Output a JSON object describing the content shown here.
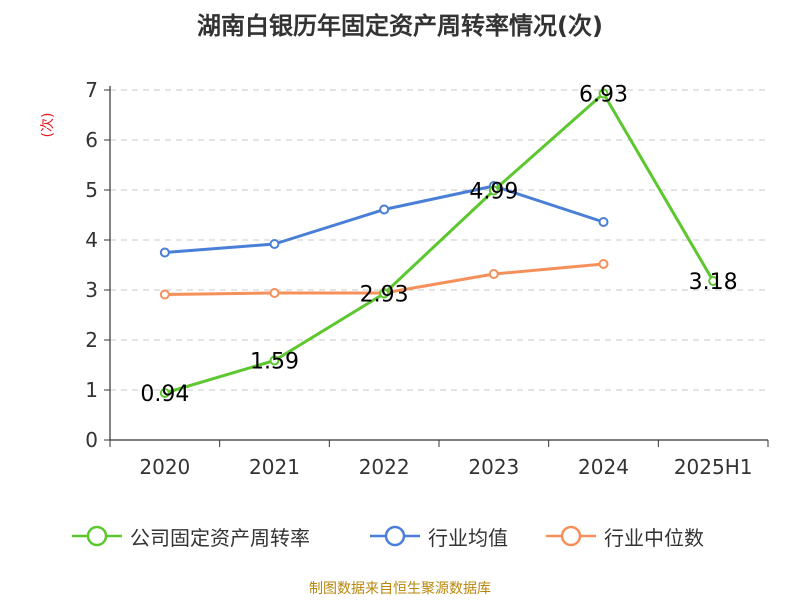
{
  "chart_data": {
    "type": "line",
    "title": "湖南白银历年固定资产周转率情况(次)",
    "ylabel": "(次)",
    "categories": [
      "2020",
      "2021",
      "2022",
      "2023",
      "2024",
      "2025H1"
    ],
    "ylim": [
      0,
      7
    ],
    "yticks": [
      0,
      1,
      2,
      3,
      4,
      5,
      6,
      7
    ],
    "grid": true,
    "legend_position": "bottom",
    "series": [
      {
        "name": "公司固定资产周转率",
        "color": "#5cc72e",
        "values": [
          0.94,
          1.59,
          2.93,
          4.99,
          6.93,
          3.18
        ],
        "labels": [
          "0.94",
          "1.59",
          "2.93",
          "4.99",
          "6.93",
          "3.18"
        ]
      },
      {
        "name": "行业均值",
        "color": "#4a7fd8",
        "values": [
          3.75,
          3.92,
          4.61,
          5.08,
          4.36,
          null
        ]
      },
      {
        "name": "行业中位数",
        "color": "#f5905a",
        "values": [
          2.91,
          2.94,
          2.94,
          3.32,
          3.52,
          null
        ]
      }
    ]
  },
  "source": "制图数据来自恒生聚源数据库"
}
